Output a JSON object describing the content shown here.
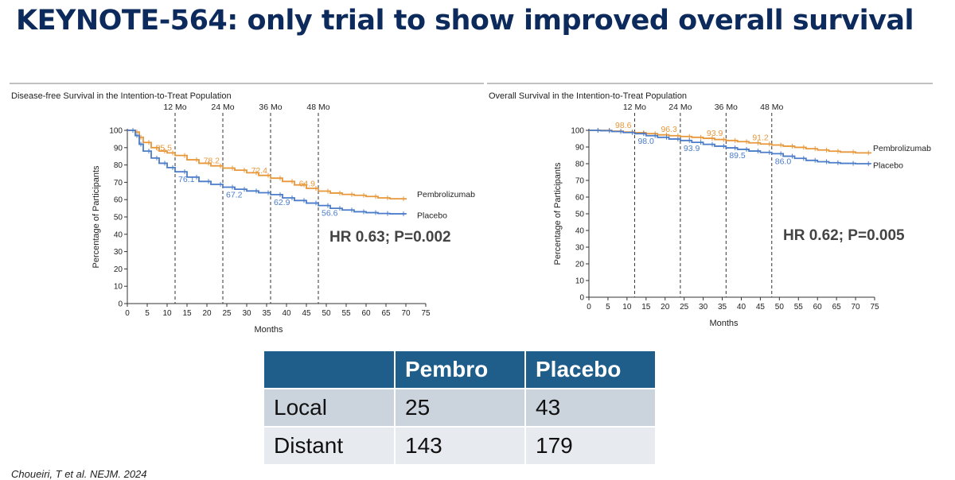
{
  "slide": {
    "title": "KEYNOTE-564: only trial to show improved overall survival",
    "citation": "Choueiri, T et al. NEJM. 2024"
  },
  "colors": {
    "pembrolizumab": "#e8973a",
    "placebo": "#4a7cc9",
    "title": "#0d2a5c",
    "table_header": "#1f5e8a"
  },
  "chart_data": [
    {
      "id": "dfs",
      "type": "line",
      "title": "Disease-free Survival in the Intention-to-Treat Population",
      "xlabel": "Months",
      "ylabel": "Percentage of Participants",
      "xlim": [
        0,
        75
      ],
      "ylim": [
        0,
        100
      ],
      "x_ticks": [
        0,
        5,
        10,
        15,
        20,
        25,
        30,
        35,
        40,
        45,
        50,
        55,
        60,
        65,
        70,
        75
      ],
      "y_ticks": [
        0,
        10,
        20,
        30,
        40,
        50,
        60,
        70,
        80,
        90,
        100
      ],
      "milestones": [
        {
          "month": 12,
          "label": "12 Mo"
        },
        {
          "month": 24,
          "label": "24 Mo"
        },
        {
          "month": 36,
          "label": "36 Mo"
        },
        {
          "month": 48,
          "label": "48 Mo"
        }
      ],
      "series": [
        {
          "name": "Pembrolizumab",
          "color": "#e8973a",
          "x": [
            0,
            2,
            3,
            4,
            6,
            8,
            10,
            12,
            15,
            18,
            21,
            24,
            27,
            30,
            33,
            36,
            39,
            42,
            45,
            48,
            51,
            54,
            57,
            60,
            63,
            66,
            70
          ],
          "y": [
            100,
            99,
            96,
            93,
            90,
            88,
            87,
            85.5,
            83,
            81,
            79.5,
            78.2,
            77,
            75.5,
            74,
            72.4,
            70.5,
            68.5,
            66.5,
            64.9,
            63.8,
            63,
            62.5,
            61.8,
            61,
            60.5,
            60
          ]
        },
        {
          "name": "Placebo",
          "color": "#4a7cc9",
          "x": [
            0,
            2,
            3,
            4,
            6,
            8,
            10,
            12,
            15,
            18,
            21,
            24,
            27,
            30,
            33,
            36,
            39,
            42,
            45,
            48,
            51,
            54,
            57,
            60,
            63,
            66,
            70
          ],
          "y": [
            100,
            97,
            92,
            88,
            84,
            81,
            78.5,
            76.1,
            73,
            70.5,
            68.8,
            67.2,
            66,
            65,
            64,
            62.9,
            61,
            59.5,
            58,
            56.6,
            55,
            54,
            53,
            52.5,
            52,
            51.8,
            51.5
          ]
        }
      ],
      "data_labels": [
        {
          "series": "Pembrolizumab",
          "month": 12,
          "text": "85.5"
        },
        {
          "series": "Pembrolizumab",
          "month": 24,
          "text": "78.2"
        },
        {
          "series": "Pembrolizumab",
          "month": 36,
          "text": "72.4"
        },
        {
          "series": "Pembrolizumab",
          "month": 48,
          "text": "64.9"
        },
        {
          "series": "Placebo",
          "month": 12,
          "text": "76.1"
        },
        {
          "series": "Placebo",
          "month": 24,
          "text": "67.2"
        },
        {
          "series": "Placebo",
          "month": 36,
          "text": "62.9"
        },
        {
          "series": "Placebo",
          "month": 48,
          "text": "56.6"
        }
      ],
      "annotation": "HR 0.63; P=0.002"
    },
    {
      "id": "os",
      "type": "line",
      "title": "Overall Survival in the Intention-to-Treat Population",
      "xlabel": "Months",
      "ylabel": "Percentage of Participants",
      "xlim": [
        0,
        75
      ],
      "ylim": [
        0,
        100
      ],
      "x_ticks": [
        0,
        5,
        10,
        15,
        20,
        25,
        30,
        35,
        40,
        45,
        50,
        55,
        60,
        65,
        70,
        75
      ],
      "y_ticks": [
        0,
        10,
        20,
        30,
        40,
        50,
        60,
        70,
        80,
        90,
        100
      ],
      "milestones": [
        {
          "month": 12,
          "label": "12 Mo"
        },
        {
          "month": 24,
          "label": "24 Mo"
        },
        {
          "month": 36,
          "label": "36 Mo"
        },
        {
          "month": 48,
          "label": "48 Mo"
        }
      ],
      "series": [
        {
          "name": "Pembrolizumab",
          "color": "#e8973a",
          "x": [
            0,
            3,
            6,
            9,
            12,
            15,
            18,
            21,
            24,
            27,
            30,
            33,
            36,
            39,
            42,
            45,
            48,
            51,
            54,
            57,
            60,
            63,
            66,
            70,
            74
          ],
          "y": [
            100,
            100,
            99.5,
            99,
            98.6,
            98,
            97.3,
            96.8,
            96.3,
            95.8,
            95.2,
            94.5,
            93.9,
            93.2,
            92.5,
            91.8,
            91.2,
            90.5,
            89.8,
            89,
            88.2,
            87.5,
            87,
            86.5,
            86.2
          ]
        },
        {
          "name": "Placebo",
          "color": "#4a7cc9",
          "x": [
            0,
            3,
            6,
            9,
            12,
            15,
            18,
            21,
            24,
            27,
            30,
            33,
            36,
            39,
            42,
            45,
            48,
            51,
            54,
            57,
            60,
            63,
            66,
            70,
            74
          ],
          "y": [
            100,
            99.8,
            99.3,
            98.7,
            98.0,
            96.8,
            95.8,
            94.8,
            93.9,
            92.8,
            91.6,
            90.5,
            89.5,
            88.6,
            87.6,
            86.8,
            86.0,
            84.5,
            83.2,
            82,
            81.2,
            80.6,
            80.2,
            80,
            79.8
          ]
        }
      ],
      "data_labels": [
        {
          "series": "Pembrolizumab",
          "month": 12,
          "text": "98.6"
        },
        {
          "series": "Pembrolizumab",
          "month": 24,
          "text": "96.3"
        },
        {
          "series": "Pembrolizumab",
          "month": 36,
          "text": "93.9"
        },
        {
          "series": "Pembrolizumab",
          "month": 48,
          "text": "91.2"
        },
        {
          "series": "Placebo",
          "month": 12,
          "text": "98.0"
        },
        {
          "series": "Placebo",
          "month": 24,
          "text": "93.9"
        },
        {
          "series": "Placebo",
          "month": 36,
          "text": "89.5"
        },
        {
          "series": "Placebo",
          "month": 48,
          "text": "86.0"
        }
      ],
      "annotation": "HR 0.62; P=0.005"
    }
  ],
  "recurrence_table": {
    "headers": [
      "",
      "Pembro",
      "Placebo"
    ],
    "rows": [
      {
        "label": "Local",
        "pembro": "25",
        "placebo": "43"
      },
      {
        "label": "Distant",
        "pembro": "143",
        "placebo": "179"
      }
    ]
  }
}
